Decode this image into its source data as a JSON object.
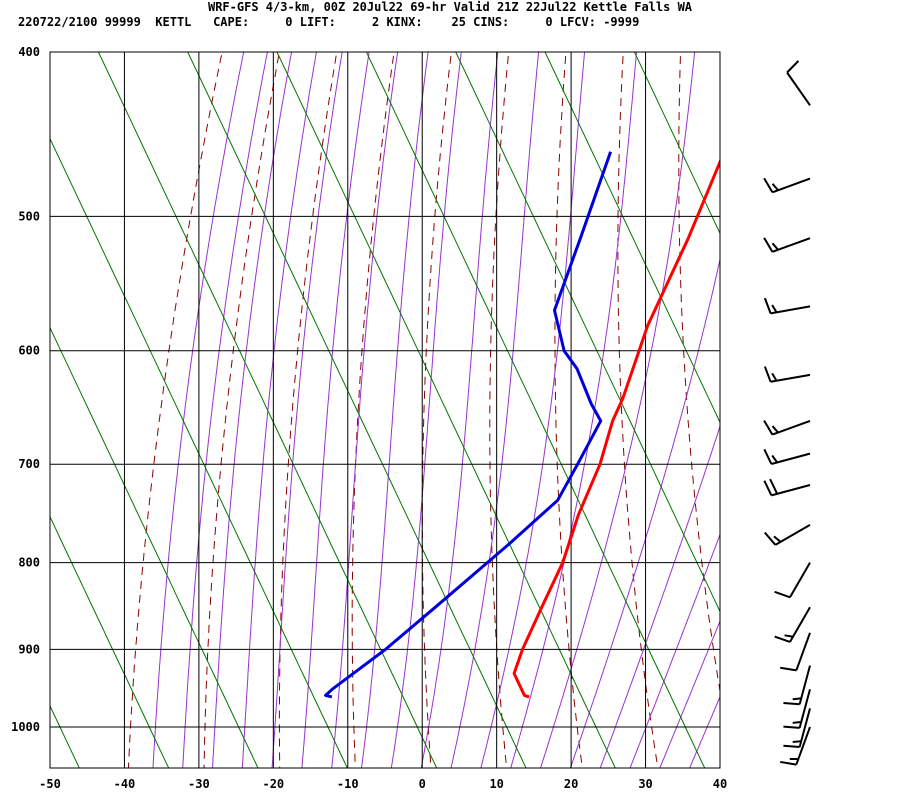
{
  "header": {
    "title": "WRF-GFS 4/3-km, 00Z 20Jul22 69-hr Valid 21Z 22Jul22 Kettle Falls WA",
    "stats": "220722/2100 99999  KETTL   CAPE:     0 LIFT:     2 KINX:    25 CINS:     0 LFCV: -9999"
  },
  "colors": {
    "temperature": "#ff0000",
    "dewpoint": "#0000dd",
    "dry_adiabat": "#8b0000",
    "moist_adiabat": "#9933cc",
    "mixing_ratio": "#007700",
    "grid": "#000000"
  },
  "chart_data": {
    "type": "line",
    "skew_t": true,
    "x_axis": {
      "ticks": [
        -50,
        -40,
        -30,
        -20,
        -10,
        0,
        10,
        20,
        30,
        40
      ],
      "range": [
        -50,
        40
      ],
      "units": "degC"
    },
    "y_axis": {
      "ticks": [
        400,
        500,
        600,
        700,
        800,
        900,
        1000
      ],
      "range": [
        400,
        1040
      ],
      "scale": "log",
      "units": "hPa"
    },
    "grid": true,
    "series": [
      {
        "key": "temperature",
        "color": "#ff0000",
        "points": [
          {
            "p": 460,
            "t": -18.9
          },
          {
            "p": 515,
            "t": -15.5
          },
          {
            "p": 580,
            "t": -12.5
          },
          {
            "p": 640,
            "t": -8.8
          },
          {
            "p": 660,
            "t": -8.0
          },
          {
            "p": 700,
            "t": -5.5
          },
          {
            "p": 750,
            "t": -3.5
          },
          {
            "p": 800,
            "t": -1.0
          },
          {
            "p": 850,
            "t": 0.5
          },
          {
            "p": 900,
            "t": 2.0
          },
          {
            "p": 930,
            "t": 3.2
          },
          {
            "p": 958,
            "t": 6.7
          },
          {
            "p": 960,
            "t": 7.5
          }
        ]
      },
      {
        "key": "dewpoint",
        "color": "#0000dd",
        "points": [
          {
            "p": 458,
            "t": -34.3
          },
          {
            "p": 515,
            "t": -30.0
          },
          {
            "p": 568,
            "t": -26.5
          },
          {
            "p": 600,
            "t": -21.3
          },
          {
            "p": 615,
            "t": -17.8
          },
          {
            "p": 645,
            "t": -12.5
          },
          {
            "p": 660,
            "t": -9.6
          },
          {
            "p": 700,
            "t": -8.5
          },
          {
            "p": 735,
            "t": -7.7
          },
          {
            "p": 780,
            "t": -10.0
          },
          {
            "p": 850,
            "t": -13.8
          },
          {
            "p": 900,
            "t": -16.4
          },
          {
            "p": 950,
            "t": -19.7
          },
          {
            "p": 958,
            "t": -20.0
          },
          {
            "p": 960,
            "t": -19.0
          }
        ]
      }
    ],
    "wind_barbs": [
      {
        "p": 430,
        "dir": 325,
        "spd": 10
      },
      {
        "p": 475,
        "dir": 250,
        "spd": 15
      },
      {
        "p": 515,
        "dir": 250,
        "spd": 15
      },
      {
        "p": 565,
        "dir": 260,
        "spd": 15
      },
      {
        "p": 620,
        "dir": 260,
        "spd": 15
      },
      {
        "p": 660,
        "dir": 250,
        "spd": 15
      },
      {
        "p": 690,
        "dir": 255,
        "spd": 15
      },
      {
        "p": 720,
        "dir": 255,
        "spd": 20
      },
      {
        "p": 760,
        "dir": 240,
        "spd": 15
      },
      {
        "p": 800,
        "dir": 210,
        "spd": 10
      },
      {
        "p": 850,
        "dir": 210,
        "spd": 15
      },
      {
        "p": 880,
        "dir": 200,
        "spd": 10
      },
      {
        "p": 920,
        "dir": 195,
        "spd": 15
      },
      {
        "p": 950,
        "dir": 195,
        "spd": 15
      },
      {
        "p": 975,
        "dir": 195,
        "spd": 15
      },
      {
        "p": 1000,
        "dir": 200,
        "spd": 15
      }
    ]
  }
}
